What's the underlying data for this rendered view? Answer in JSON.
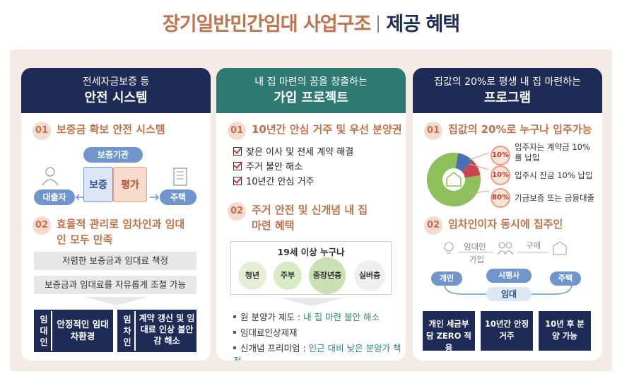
{
  "header": {
    "title": "장기일반민간임대 사업구조",
    "subtitle": "제공 혜택"
  },
  "card1": {
    "head_line1": "전세자금보증 등",
    "head_line2": "안전 시스템",
    "sec1": {
      "num": "01",
      "title": "보증금 확보 안전 시스템"
    },
    "guarantor_label": "보증기관",
    "borrower_label": "대출자",
    "guarantee_label": "보증",
    "evaluation_label": "평가",
    "house_label": "주택",
    "sec2": {
      "num": "02",
      "title": "효율적 관리로 임차인과 임대인 모두 만족"
    },
    "bar1": "저렴한 보증금과 임대료 책정",
    "bar2": "보증금과 임대료를 자유롭게 조절 가능",
    "landlord_label": "임대인",
    "landlord_text": "안정적인 임대차환경",
    "tenant_label": "임차인",
    "tenant_text": "계약 갱신 및 임대료 인상 불안감 해소"
  },
  "card2": {
    "head_line1": "내 집 마련의 꿈을 창출하는",
    "head_line2": "가입 프로젝트",
    "sec1": {
      "num": "01",
      "title": "10년간 안심 거주 및 우선 분양권"
    },
    "checks": [
      "잦은 이사 및 전세 계약 해결",
      "주거 불안 해소",
      "10년간 안심 거주"
    ],
    "sec2": {
      "num": "02",
      "title": "주거 안전 및 신개념 내 집 마련 혜택"
    },
    "eligibility": "19세 이상 누구나",
    "groups": [
      "청년",
      "주부",
      "중장년층",
      "실버층"
    ],
    "bullets": [
      {
        "prefix": "원 분양가 제도 : ",
        "hl": "내 집 마련 불안 해소"
      },
      {
        "prefix": "임대료인상제재",
        "hl": ""
      },
      {
        "prefix": "신개념 프리미엄 : ",
        "hl": "인근 대비 낮은 분양가 책정"
      }
    ]
  },
  "card3": {
    "head_line1": "집값의 20%로 평생 내 집 마련하는",
    "head_line2": "프로그램",
    "sec1": {
      "num": "01",
      "title": "집값의 20%로 누구나 입주가능"
    },
    "pie_slices": [
      {
        "label": "10%",
        "text": "입주자는 계약금 10%를 납입",
        "value": 10,
        "color": "#4a6fb5"
      },
      {
        "label": "10%",
        "text": "입주시 잔금 10% 납입",
        "value": 10,
        "color": "#c8474f"
      },
      {
        "label": "80%",
        "text": "기금보증 또는 금융대출",
        "value": 80,
        "color": "#8ebf5a"
      }
    ],
    "sec2": {
      "num": "02",
      "title": "임차인이자 동시에 집주인"
    },
    "flow_tenant": "임대인",
    "flow_join": "가입",
    "flow_buy": "구매",
    "individual": "개인",
    "operator": "시행사",
    "house": "주택",
    "lease": "임대",
    "blocks": [
      "개인 세금부담 ZERO 적용",
      "10년간 안정거주",
      "10년 후 분양 가능"
    ]
  }
}
